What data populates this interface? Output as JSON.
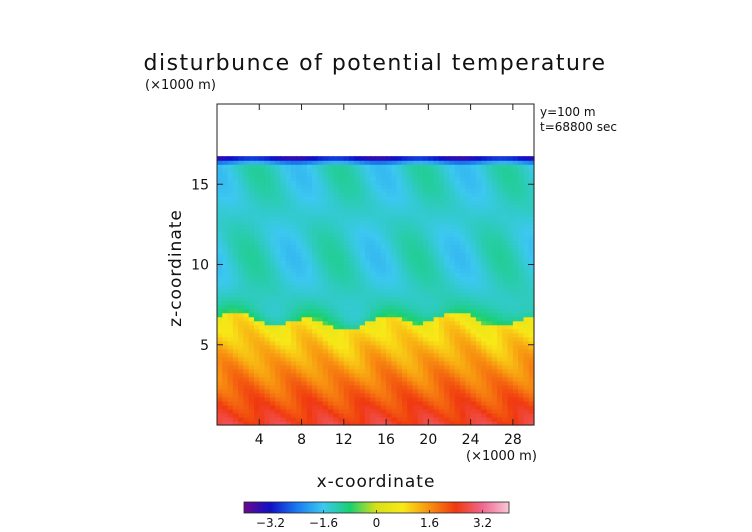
{
  "chart_data": {
    "type": "heatmap",
    "title": "disturbunce of potential temperature",
    "xlabel": "x-coordinate",
    "ylabel": "z-coordinate",
    "x_unit": "(×1000 m)",
    "y_unit": "(×1000 m)",
    "annotations": [
      "y=100 m",
      "t=68800 sec"
    ],
    "xlim": [
      0,
      30
    ],
    "ylim": [
      0,
      20
    ],
    "x_ticks": [
      4,
      8,
      12,
      16,
      20,
      24,
      28
    ],
    "y_ticks": [
      5,
      10,
      15
    ],
    "grid": false,
    "colorbar": {
      "range": [
        -4,
        4
      ],
      "ticks": [
        -3.2,
        -1.6,
        0,
        1.6,
        3.2
      ],
      "tick_labels": [
        "−3.2",
        "−1.6",
        "0",
        "1.6",
        "3.2"
      ],
      "colors": [
        "#6a0a8a",
        "#1010c8",
        "#1a7cf0",
        "#3cc8f0",
        "#18d070",
        "#d8e018",
        "#f8e818",
        "#f89010",
        "#f03810",
        "#f06890",
        "#f8c8d8"
      ]
    },
    "field_description_levels": {
      "top_of_domain_km": 16.8,
      "upper_layer_value": -1.4,
      "inversion_height_km": 6.5,
      "surface_value": 2.6
    }
  }
}
